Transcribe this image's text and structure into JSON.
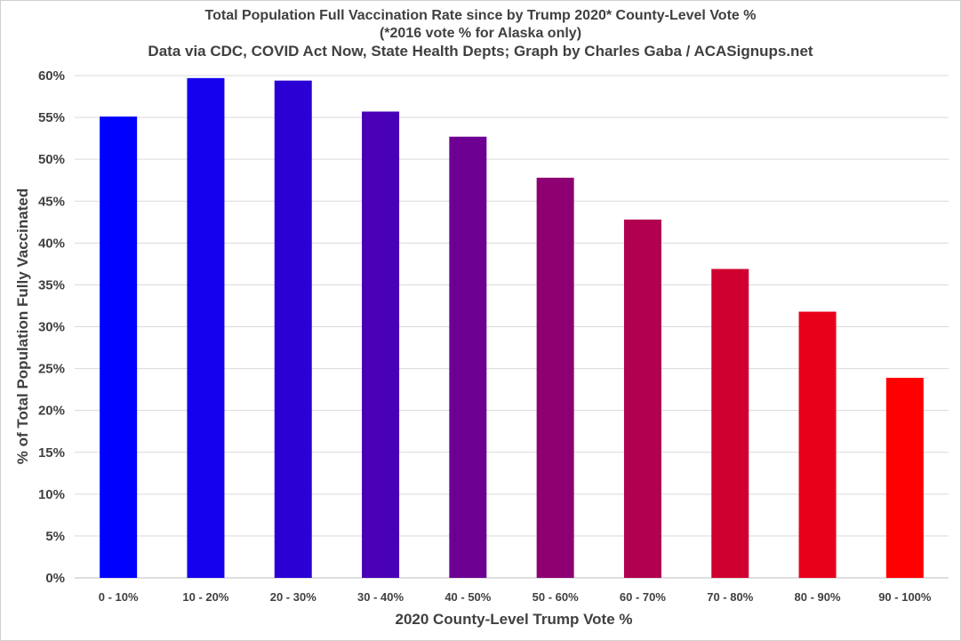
{
  "chart_data": {
    "type": "bar",
    "title": "Total Population Full Vaccination Rate since by Trump 2020* County-Level Vote %",
    "subtitle": "(*2016 vote % for Alaska only)",
    "source": "Data via CDC, COVID Act Now, State Health Depts; Graph by Charles Gaba / ACASignups.net",
    "xlabel": "2020 County-Level Trump Vote %",
    "ylabel": "% of Total Population Fully Vaccinated",
    "categories": [
      "0 - 10%",
      "10 - 20%",
      "20 - 30%",
      "30 - 40%",
      "40 - 50%",
      "50 - 60%",
      "60 - 70%",
      "70 - 80%",
      "80 - 90%",
      "90 - 100%"
    ],
    "values": [
      55.1,
      59.7,
      59.4,
      55.7,
      52.7,
      47.8,
      42.8,
      36.9,
      31.8,
      23.9
    ],
    "ylim": [
      0,
      60
    ],
    "yticks": [
      0,
      5,
      10,
      15,
      20,
      25,
      30,
      35,
      40,
      45,
      50,
      55,
      60
    ],
    "ytick_labels": [
      "0%",
      "5%",
      "10%",
      "15%",
      "20%",
      "25%",
      "30%",
      "35%",
      "40%",
      "45%",
      "50%",
      "55%",
      "60%"
    ],
    "grid": true,
    "bar_colors": [
      "#0000ff",
      "#1400ec",
      "#2b00d5",
      "#4a00b6",
      "#6d0093",
      "#8e0072",
      "#b0004f",
      "#cf0030",
      "#e8001b",
      "#ff0000"
    ],
    "colors": {
      "gridline": "#d9d9d9",
      "text": "#404040"
    }
  }
}
